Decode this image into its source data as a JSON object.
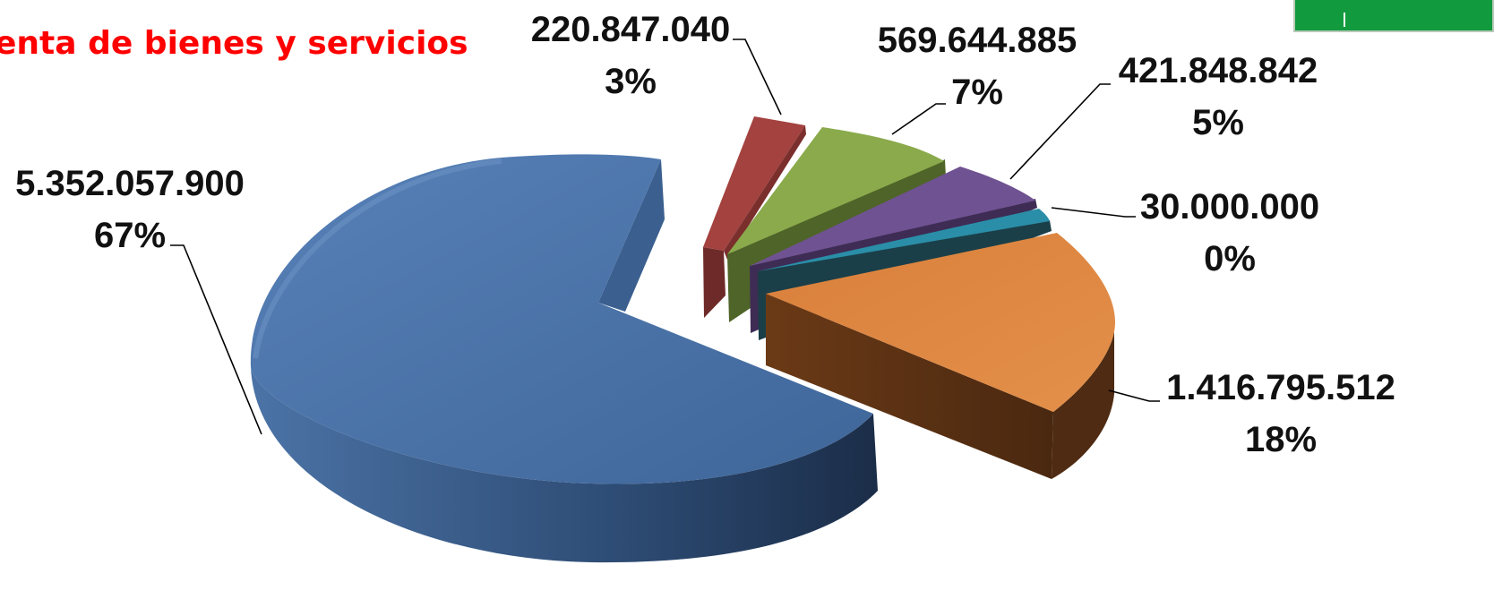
{
  "title": "enta de bienes y servicios",
  "chart_data": {
    "type": "pie",
    "title": "enta de bienes y servicios",
    "style": "3d-exploded",
    "legend": "none",
    "slices": [
      {
        "value": 5352057900,
        "value_label": "5.352.057.900",
        "pct_label": "67%",
        "color": "#4a72a8"
      },
      {
        "value": 220847040,
        "value_label": "220.847.040",
        "pct_label": "3%",
        "color": "#a3423f"
      },
      {
        "value": 569644885,
        "value_label": "569.644.885",
        "pct_label": "7%",
        "color": "#8aaa4c"
      },
      {
        "value": 421848842,
        "value_label": "421.848.842",
        "pct_label": "5%",
        "color": "#6f5291"
      },
      {
        "value": 30000000,
        "value_label": "30.000.000",
        "pct_label": "0%",
        "color": "#2a8ea8"
      },
      {
        "value": 1416795512,
        "value_label": "1.416.795.512",
        "pct_label": "18%",
        "color": "#d9803b"
      }
    ]
  }
}
